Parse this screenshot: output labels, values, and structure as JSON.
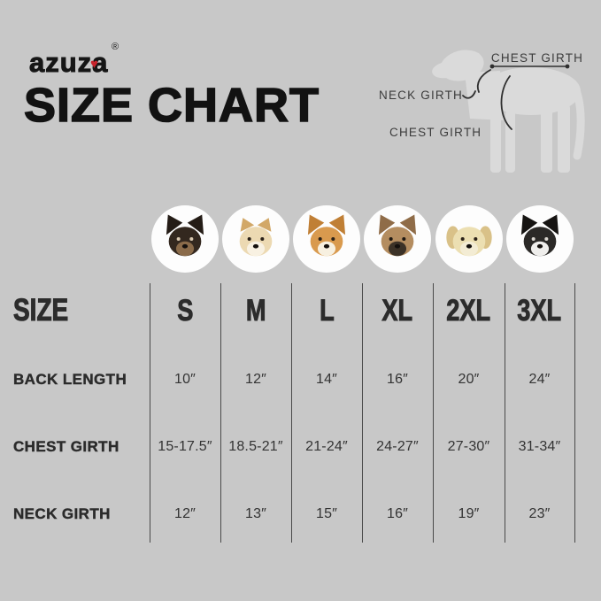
{
  "page": {
    "background_color": "#c8c8c8",
    "text_color": "#2c2c2c",
    "accent_red": "#c8232c"
  },
  "header": {
    "brand": "azuza",
    "heart_icon": "♥",
    "registered": "®",
    "title": "SIZE CHART"
  },
  "diagram": {
    "labels": {
      "top": "CHEST GIRTH",
      "neck": "NECK GIRTH",
      "chest": "CHEST GIRTH"
    },
    "silhouette_color": "#dadada",
    "line_color": "#3a3a3a"
  },
  "table": {
    "size_label": "SIZE",
    "columns": [
      "S",
      "M",
      "L",
      "XL",
      "2XL",
      "3XL"
    ],
    "dogs": [
      {
        "name": "chihuahua",
        "ear_type": "up",
        "ear": "#241c16",
        "head": "#33281f",
        "muzzle": "#8a6b4a",
        "eye": "#d8c8b0"
      },
      {
        "name": "pomeranian",
        "ear_type": "small",
        "ear": "#d2a868",
        "head": "#ecd9b2",
        "muzzle": "#f8f1e2",
        "eye": "#2a2118"
      },
      {
        "name": "shiba-inu",
        "ear_type": "up",
        "ear": "#c07f35",
        "head": "#d99a4e",
        "muzzle": "#f7f0e0",
        "eye": "#2a2118"
      },
      {
        "name": "french-bulldog",
        "ear_type": "up",
        "ear": "#8f6c48",
        "head": "#b48d60",
        "muzzle": "#3c3227",
        "eye": "#1d1711"
      },
      {
        "name": "labrador",
        "ear_type": "drop",
        "ear": "#d9c188",
        "head": "#ecdfb2",
        "muzzle": "#f3ecd4",
        "eye": "#2a2118"
      },
      {
        "name": "border-collie",
        "ear_type": "up",
        "ear": "#161412",
        "head": "#2b2927",
        "muzzle": "#efeeec",
        "eye": "#d9d5cf"
      }
    ],
    "rows": [
      {
        "label": "BACK LENGTH",
        "values": [
          "10″",
          "12″",
          "14″",
          "16″",
          "20″",
          "24″"
        ]
      },
      {
        "label": "CHEST GIRTH",
        "values": [
          "15-17.5″",
          "18.5-21″",
          "21-24″",
          "24-27″",
          "27-30″",
          "31-34″"
        ]
      },
      {
        "label": "NECK GIRTH",
        "values": [
          "12″",
          "13″",
          "15″",
          "16″",
          "19″",
          "23″"
        ]
      }
    ]
  },
  "chart_data": {
    "type": "table",
    "title": "SIZE CHART",
    "columns": [
      "SIZE",
      "S",
      "M",
      "L",
      "XL",
      "2XL",
      "3XL"
    ],
    "rows": [
      [
        "BACK LENGTH",
        "10″",
        "12″",
        "14″",
        "16″",
        "20″",
        "24″"
      ],
      [
        "CHEST GIRTH",
        "15-17.5″",
        "18.5-21″",
        "21-24″",
        "24-27″",
        "27-30″",
        "31-34″"
      ],
      [
        "NECK GIRTH",
        "12″",
        "13″",
        "15″",
        "16″",
        "19″",
        "23″"
      ]
    ]
  }
}
